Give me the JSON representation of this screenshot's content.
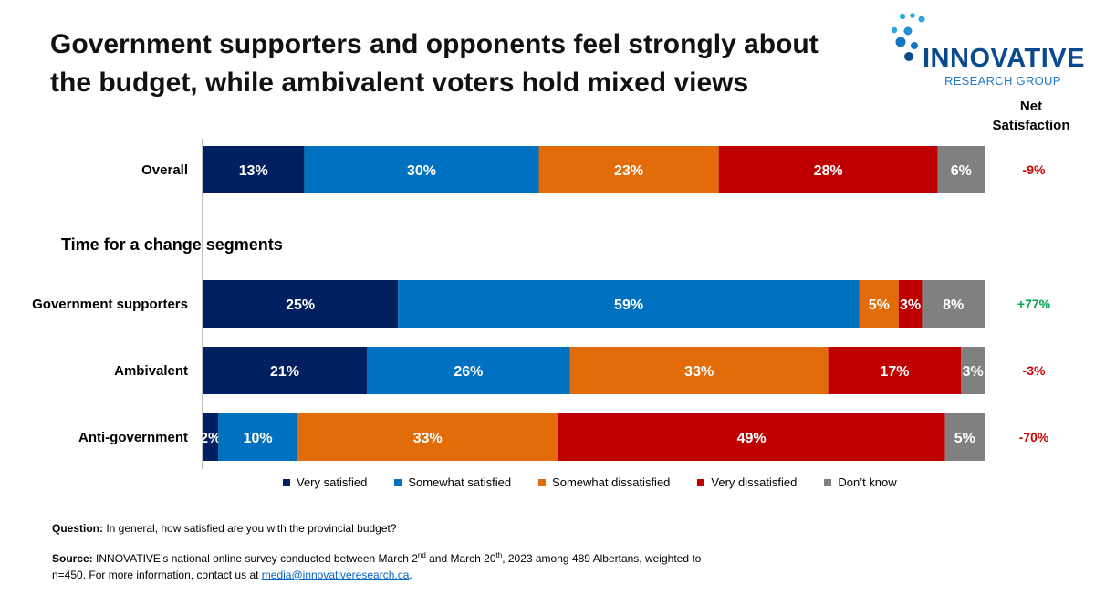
{
  "title": "Government supporters and opponents feel strongly about the budget, while ambivalent voters hold mixed views",
  "logo": {
    "name": "INNOVATIVE",
    "sub": "RESEARCH GROUP"
  },
  "net_header": {
    "line1": "Net",
    "line2": "Satisfaction"
  },
  "segments_heading": "Time for a change segments",
  "colors": {
    "very_satisfied": "#002060",
    "somewhat_satisfied": "#0070c0",
    "somewhat_dissatisfied": "#e36c0a",
    "very_dissatisfied": "#c00000",
    "dont_know": "#808080",
    "net_positive": "#00a651",
    "net_negative": "#d00000"
  },
  "chart_data": {
    "type": "bar",
    "orientation": "horizontal-stacked-100",
    "categories": [
      "Overall",
      "Government supporters",
      "Ambivalent",
      "Anti-government"
    ],
    "series": [
      {
        "name": "Very satisfied",
        "values": [
          13,
          25,
          21,
          2
        ]
      },
      {
        "name": "Somewhat satisfied",
        "values": [
          30,
          59,
          26,
          10
        ]
      },
      {
        "name": "Somewhat dissatisfied",
        "values": [
          23,
          5,
          33,
          33
        ]
      },
      {
        "name": "Very dissatisfied",
        "values": [
          28,
          3,
          17,
          49
        ]
      },
      {
        "name": "Don’t know",
        "values": [
          6,
          8,
          3,
          5
        ]
      }
    ],
    "net_satisfaction": [
      "-9%",
      "+77%",
      "-3%",
      "-70%"
    ],
    "xlim": [
      0,
      100
    ],
    "legend_position": "bottom"
  },
  "footnote": {
    "question_label": "Question:",
    "question_text": "In general, how satisfied are you with the provincial budget?",
    "source_label": "Source:",
    "source_text_1": "INNOVATIVE’s national online survey conducted between March 2",
    "sup1": "nd",
    "source_text_2": " and March 20",
    "sup2": "th",
    "source_text_3": ",  2023  among 489  Albertans, weighted to",
    "source_line2": "n=450.  For more information, contact us at ",
    "email": "media@innovativeresearch.ca",
    "period": "."
  }
}
